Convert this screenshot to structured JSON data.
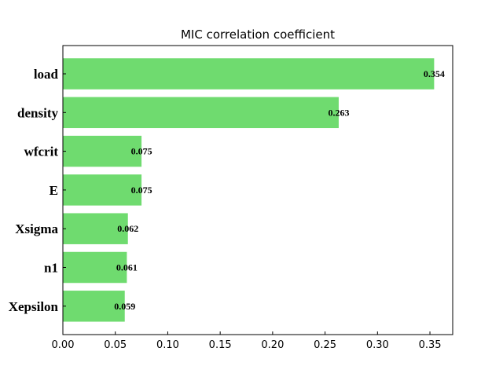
{
  "chart_data": {
    "type": "bar",
    "orientation": "horizontal",
    "title": "MIC correlation coefficient",
    "xlabel": "",
    "ylabel": "",
    "categories": [
      "load",
      "density",
      "wfcrit",
      "E",
      "Xsigma",
      "n1",
      "Xepsilon"
    ],
    "values": [
      0.354,
      0.263,
      0.075,
      0.075,
      0.062,
      0.061,
      0.059
    ],
    "value_labels": [
      "0.354",
      "0.263",
      "0.075",
      "0.075",
      "0.062",
      "0.061",
      "0.059"
    ],
    "xlim": [
      0,
      0.3717
    ],
    "xticks": [
      0.0,
      0.05,
      0.1,
      0.15,
      0.2,
      0.25,
      0.3,
      0.35
    ],
    "xtick_labels": [
      "0.00",
      "0.05",
      "0.10",
      "0.15",
      "0.20",
      "0.25",
      "0.30",
      "0.35"
    ],
    "grid": false,
    "bar_color": "#6fdb6f"
  }
}
